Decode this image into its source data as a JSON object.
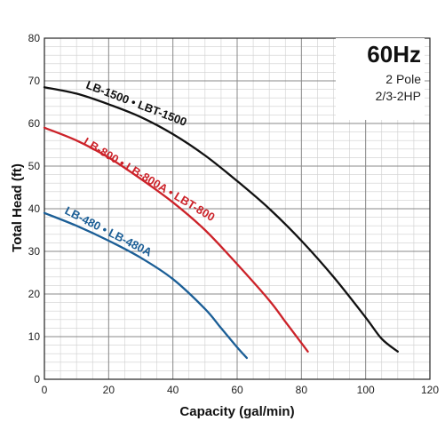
{
  "chart_data": {
    "type": "line",
    "xlabel": "Capacity (gal/min)",
    "ylabel": "Total Head (ft)",
    "xlim": [
      0,
      120
    ],
    "ylim": [
      0,
      80
    ],
    "x_ticks": [
      0,
      20,
      40,
      60,
      80,
      100,
      120
    ],
    "y_ticks": [
      0,
      10,
      20,
      30,
      40,
      50,
      60,
      70,
      80
    ],
    "x_tick_labels": [
      "0",
      "20",
      "40",
      "60",
      "80",
      "100",
      "120"
    ],
    "y_tick_labels": [
      "0",
      "10",
      "20",
      "30",
      "40",
      "50",
      "60",
      "70",
      "80"
    ],
    "grid": true,
    "minor_grid_x_step": 5,
    "minor_grid_y_step": 2,
    "info": {
      "frequency": "60Hz",
      "poles": "2 Pole",
      "power": "2/3-2HP"
    },
    "series": [
      {
        "label": "LB-1500 • LBT-1500",
        "color": "#111111",
        "x": [
          0,
          10,
          20,
          30,
          40,
          50,
          60,
          70,
          80,
          90,
          100,
          105,
          110
        ],
        "y": [
          68.5,
          67,
          64.5,
          61.5,
          57.5,
          52.5,
          46.5,
          40,
          32.5,
          24,
          14.5,
          9.5,
          6.5
        ]
      },
      {
        "label": "LB-800 • LB-800A • LBT-800",
        "color": "#cc2229",
        "x": [
          0,
          10,
          20,
          30,
          40,
          50,
          60,
          70,
          75,
          80,
          82
        ],
        "y": [
          59,
          56,
          52,
          47,
          41.5,
          35,
          27,
          18.5,
          13.5,
          8.5,
          6.5
        ]
      },
      {
        "label": "LB-480 • LB-480A",
        "color": "#1b5e96",
        "x": [
          0,
          10,
          20,
          30,
          40,
          50,
          55,
          60,
          63
        ],
        "y": [
          39,
          36,
          32.5,
          28.5,
          23.5,
          16.5,
          12,
          7.5,
          5
        ]
      }
    ]
  }
}
